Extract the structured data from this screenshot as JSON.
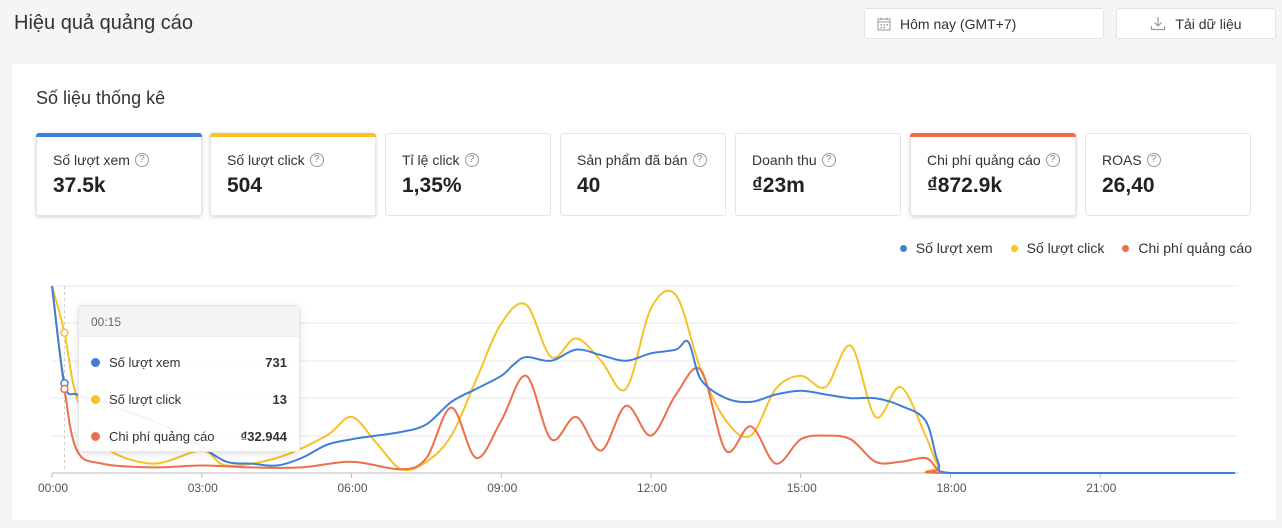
{
  "header": {
    "title": "Hiệu quả quảng cáo",
    "date_label": "Hôm nay (GMT+7)",
    "download_label": "Tải dữ liệu"
  },
  "stats": {
    "title": "Số liệu thống kê",
    "metrics": [
      {
        "label": "Số lượt xem",
        "value": "37.5k",
        "accent": "#3d7fd9",
        "active": true
      },
      {
        "label": "Số lượt click",
        "value": "504",
        "accent": "#f5c227",
        "active": true
      },
      {
        "label": "Tỉ lệ click",
        "value": "1,35%",
        "accent": "",
        "active": false
      },
      {
        "label": "Sản phẩm đã bán",
        "value": "40",
        "accent": "",
        "active": false
      },
      {
        "label": "Doanh thu",
        "value": "₫23m",
        "accent": "",
        "active": false
      },
      {
        "label": "Chi phí quảng cáo",
        "value": "₫872.9k",
        "accent": "#ee6e4a",
        "active": true
      },
      {
        "label": "ROAS",
        "value": "26,40",
        "accent": "",
        "active": false
      }
    ]
  },
  "tooltip": {
    "time": "00:15",
    "rows": [
      {
        "label": "Số lượt xem",
        "value": "731",
        "color": "#3d7fd9"
      },
      {
        "label": "Số lượt click",
        "value": "13",
        "color": "#f5c227"
      },
      {
        "label": "Chi phí quảng cáo",
        "value": "₫32.944",
        "color": "#ee6e4a"
      }
    ]
  },
  "chart_data": {
    "type": "line",
    "x_labels": [
      "00:00",
      "03:00",
      "06:00",
      "09:00",
      "12:00",
      "15:00",
      "18:00",
      "21:00"
    ],
    "grid": true,
    "legend_placement": "top-right",
    "series": [
      {
        "name": "Số lượt xem",
        "color": "#3d7fd9",
        "values": [
          [
            0,
            100
          ],
          [
            0.25,
            48
          ],
          [
            0.5,
            42
          ],
          [
            1,
            38
          ],
          [
            1.5,
            33
          ],
          [
            2,
            28
          ],
          [
            2.5,
            22
          ],
          [
            3,
            14
          ],
          [
            3.5,
            6
          ],
          [
            4,
            5
          ],
          [
            4.5,
            4
          ],
          [
            5,
            8
          ],
          [
            5.5,
            15
          ],
          [
            6,
            18
          ],
          [
            6.5,
            20
          ],
          [
            7,
            22
          ],
          [
            7.5,
            26
          ],
          [
            8,
            38
          ],
          [
            8.5,
            45
          ],
          [
            9,
            52
          ],
          [
            9.25,
            58
          ],
          [
            9.5,
            62
          ],
          [
            10,
            60
          ],
          [
            10.5,
            66
          ],
          [
            11,
            63
          ],
          [
            11.5,
            60
          ],
          [
            12,
            64
          ],
          [
            12.5,
            66
          ],
          [
            12.75,
            70
          ],
          [
            13,
            50
          ],
          [
            13.5,
            40
          ],
          [
            14,
            38
          ],
          [
            14.5,
            42
          ],
          [
            15,
            44
          ],
          [
            15.5,
            42
          ],
          [
            16,
            40
          ],
          [
            16.5,
            40
          ],
          [
            17,
            36
          ],
          [
            17.5,
            28
          ],
          [
            17.75,
            6
          ],
          [
            18,
            0
          ],
          [
            20,
            0
          ],
          [
            23.7,
            0
          ]
        ]
      },
      {
        "name": "Số lượt click",
        "color": "#f5c227",
        "values": [
          [
            0,
            100
          ],
          [
            0.25,
            75
          ],
          [
            0.5,
            40
          ],
          [
            1,
            15
          ],
          [
            2,
            5
          ],
          [
            3,
            12
          ],
          [
            3.5,
            4
          ],
          [
            4.5,
            8
          ],
          [
            5.5,
            20
          ],
          [
            6,
            30
          ],
          [
            6.5,
            16
          ],
          [
            7,
            2
          ],
          [
            7.5,
            6
          ],
          [
            8,
            20
          ],
          [
            8.5,
            50
          ],
          [
            9,
            80
          ],
          [
            9.5,
            90
          ],
          [
            10,
            62
          ],
          [
            10.5,
            72
          ],
          [
            11,
            60
          ],
          [
            11.5,
            45
          ],
          [
            12,
            88
          ],
          [
            12.5,
            95
          ],
          [
            13,
            55
          ],
          [
            13.5,
            28
          ],
          [
            14,
            20
          ],
          [
            14.5,
            45
          ],
          [
            15,
            52
          ],
          [
            15.5,
            46
          ],
          [
            16,
            68
          ],
          [
            16.5,
            30
          ],
          [
            17,
            46
          ],
          [
            17.5,
            20
          ],
          [
            17.75,
            4
          ],
          [
            18,
            0
          ],
          [
            23.7,
            0
          ]
        ]
      },
      {
        "name": "Chi phí quảng cáo",
        "color": "#ee6e4a",
        "values": [
          [
            0,
            100
          ],
          [
            0.25,
            45
          ],
          [
            0.5,
            12
          ],
          [
            1,
            5
          ],
          [
            2,
            3
          ],
          [
            3,
            4
          ],
          [
            4,
            3
          ],
          [
            5,
            3
          ],
          [
            6,
            6
          ],
          [
            7,
            2
          ],
          [
            7.5,
            8
          ],
          [
            8,
            35
          ],
          [
            8.5,
            8
          ],
          [
            9,
            28
          ],
          [
            9.5,
            52
          ],
          [
            10,
            18
          ],
          [
            10.5,
            30
          ],
          [
            11,
            12
          ],
          [
            11.5,
            36
          ],
          [
            12,
            20
          ],
          [
            12.5,
            42
          ],
          [
            13,
            55
          ],
          [
            13.5,
            12
          ],
          [
            14,
            25
          ],
          [
            14.5,
            5
          ],
          [
            15,
            18
          ],
          [
            15.5,
            20
          ],
          [
            16,
            18
          ],
          [
            16.5,
            6
          ],
          [
            17,
            6
          ],
          [
            17.5,
            8
          ],
          [
            17.75,
            2
          ],
          [
            18,
            0
          ],
          [
            23.7,
            0
          ]
        ]
      }
    ]
  }
}
